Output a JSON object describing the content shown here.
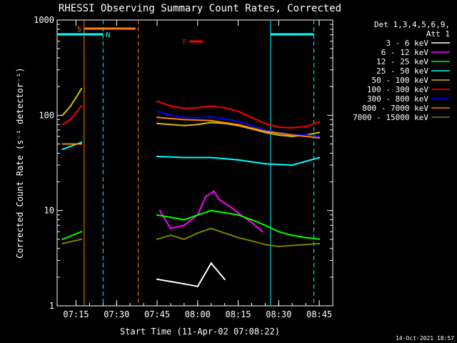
{
  "chart_data": {
    "type": "line",
    "title": "RHESSI Observing Summary Count Rates, Corrected",
    "xlabel": "Start Time (11-Apr-02 07:08:22)",
    "ylabel": "Corrected Count Rate (s⁻¹ detector⁻¹)",
    "yscale": "log",
    "ylim": [
      1,
      1000
    ],
    "xlim_minutes": [
      428,
      530
    ],
    "x_ticks": [
      "07:15",
      "07:30",
      "07:45",
      "08:00",
      "08:15",
      "08:30",
      "08:45"
    ],
    "y_ticks": [
      "1",
      "10",
      "100",
      "1000"
    ],
    "legend_header": [
      "Det 1,3,4,5,6,9,",
      "Att 1"
    ],
    "legend_position": "top-right",
    "timestamp": "14-Oct-2021 18:57",
    "flags": [
      {
        "label": "S",
        "color": "#ff8000",
        "start": "07:18",
        "end": "07:37"
      },
      {
        "label": "F",
        "color": "#ff0000",
        "start": "07:57",
        "end": "08:02"
      }
    ],
    "series": [
      {
        "name": "3 - 6 keV",
        "color": "#ffffff",
        "segments": [
          {
            "x": [
              "07:45",
              "07:50",
              "07:55",
              "08:00",
              "08:05",
              "08:10"
            ],
            "y": [
              1.9,
              1.8,
              1.7,
              1.6,
              2.8,
              1.9
            ]
          }
        ]
      },
      {
        "name": "6 - 12 keV",
        "color": "#ff00ff",
        "segments": [
          {
            "x": [
              "07:46",
              "07:50",
              "07:55",
              "08:00",
              "08:03",
              "08:06",
              "08:08",
              "08:12",
              "08:16",
              "08:20",
              "08:24"
            ],
            "y": [
              10,
              6.5,
              7,
              9,
              14,
              16,
              13,
              11,
              9,
              7.5,
              6
            ]
          }
        ]
      },
      {
        "name": "12 - 25 keV",
        "color": "#00ff00",
        "segments": [
          {
            "x": [
              "07:10",
              "07:17"
            ],
            "y": [
              5,
              6
            ]
          },
          {
            "x": [
              "07:45",
              "07:50",
              "07:55",
              "08:00",
              "08:05",
              "08:10",
              "08:15",
              "08:20",
              "08:25",
              "08:30",
              "08:35",
              "08:40",
              "08:45"
            ],
            "y": [
              9,
              8.5,
              8,
              9,
              10,
              9.5,
              9,
              8,
              7,
              6,
              5.5,
              5.2,
              5
            ]
          }
        ]
      },
      {
        "name": "25 - 50 keV",
        "color": "#00ffff",
        "segments": [
          {
            "x": [
              "07:10",
              "07:17"
            ],
            "y": [
              44,
              52
            ]
          },
          {
            "x": [
              "07:45",
              "07:55",
              "08:05",
              "08:15",
              "08:25",
              "08:35",
              "08:45"
            ],
            "y": [
              37,
              36,
              36,
              34,
              31,
              30,
              36
            ]
          }
        ]
      },
      {
        "name": "50 - 100 keV",
        "color": "#d0c000",
        "segments": [
          {
            "x": [
              "07:10",
              "07:13",
              "07:17"
            ],
            "y": [
              100,
              125,
              190
            ]
          },
          {
            "x": [
              "07:45",
              "07:50",
              "07:55",
              "08:00",
              "08:05",
              "08:10",
              "08:15",
              "08:20",
              "08:25",
              "08:30",
              "08:35",
              "08:40",
              "08:45"
            ],
            "y": [
              82,
              80,
              78,
              80,
              84,
              82,
              78,
              72,
              66,
              62,
              60,
              62,
              66
            ]
          }
        ]
      },
      {
        "name": "100 - 300 keV",
        "color": "#ff0000",
        "segments": [
          {
            "x": [
              "07:10",
              "07:13",
              "07:17"
            ],
            "y": [
              80,
              90,
              125
            ]
          },
          {
            "x": [
              "07:45",
              "07:50",
              "07:55",
              "08:00",
              "08:05",
              "08:10",
              "08:15",
              "08:20",
              "08:25",
              "08:30",
              "08:35",
              "08:40",
              "08:45"
            ],
            "y": [
              140,
              125,
              118,
              120,
              125,
              120,
              110,
              95,
              82,
              75,
              74,
              76,
              85
            ]
          }
        ]
      },
      {
        "name": "300 - 800 keV",
        "color": "#0000ff",
        "segments": [
          {
            "x": [
              "07:45",
              "07:50",
              "07:55",
              "08:00",
              "08:05",
              "08:10",
              "08:15",
              "08:20",
              "08:25",
              "08:30",
              "08:35",
              "08:40",
              "08:45"
            ],
            "y": [
              110,
              100,
              95,
              94,
              96,
              92,
              86,
              78,
              70,
              66,
              63,
              62,
              60
            ]
          }
        ]
      },
      {
        "name": "800 - 7000 keV",
        "color": "#ff8000",
        "segments": [
          {
            "x": [
              "07:10",
              "07:17"
            ],
            "y": [
              50,
              50
            ]
          },
          {
            "x": [
              "07:45",
              "07:55",
              "08:05",
              "08:15",
              "08:25",
              "08:35",
              "08:45"
            ],
            "y": [
              95,
              90,
              88,
              80,
              68,
              62,
              58
            ]
          }
        ]
      },
      {
        "name": "7000 - 15000 keV",
        "color": "#808000",
        "segments": [
          {
            "x": [
              "07:10",
              "07:17"
            ],
            "y": [
              4.5,
              5
            ]
          },
          {
            "x": [
              "07:45",
              "07:50",
              "07:55",
              "08:00",
              "08:05",
              "08:10",
              "08:15",
              "08:20",
              "08:25",
              "08:30",
              "08:35",
              "08:40",
              "08:45"
            ],
            "y": [
              5,
              5.5,
              5,
              5.8,
              6.5,
              5.8,
              5.2,
              4.8,
              4.4,
              4.2,
              4.3,
              4.4,
              4.5
            ]
          }
        ]
      }
    ],
    "vertical_markers": [
      {
        "x": "07:18",
        "color": "#ff8000",
        "style": "solid"
      },
      {
        "x": "07:38",
        "color": "#ff8000",
        "style": "dashed"
      },
      {
        "x": "07:25",
        "color": "#00ffff",
        "style": "dashed"
      },
      {
        "x": "08:27",
        "color": "#00ffff",
        "style": "solid"
      },
      {
        "x": "08:43",
        "color": "#00ffff",
        "style": "dashed"
      }
    ],
    "night_bars": [
      {
        "label": "N",
        "start": "07:08",
        "end": "07:25",
        "color": "#00ffff"
      },
      {
        "start": "08:27",
        "end": "08:43",
        "color": "#00ffff"
      }
    ]
  }
}
